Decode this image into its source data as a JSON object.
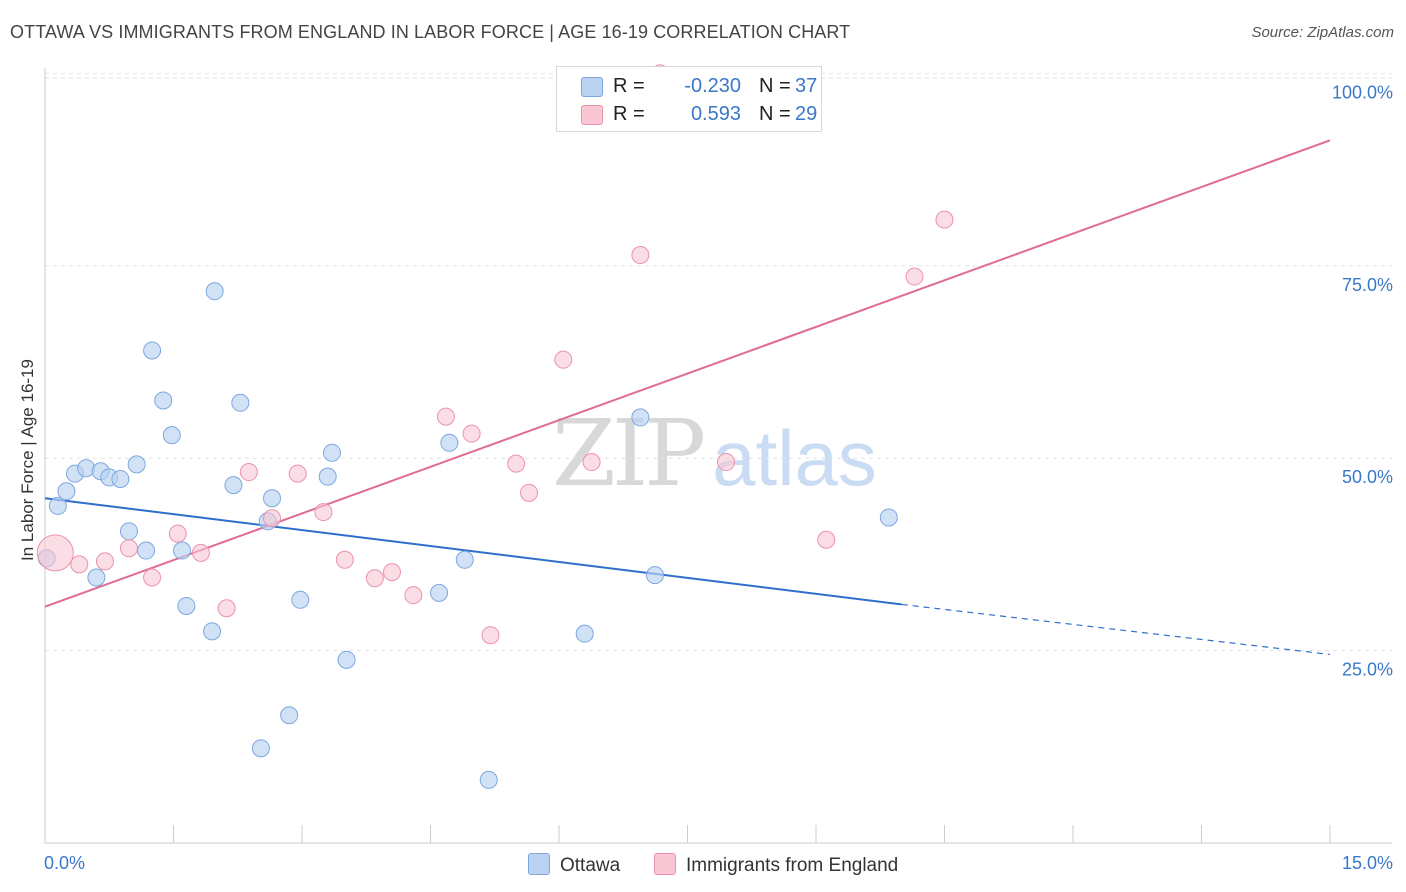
{
  "title": "OTTAWA VS IMMIGRANTS FROM ENGLAND IN LABOR FORCE | AGE 16-19 CORRELATION CHART",
  "source": "Source: ZipAtlas.com",
  "watermark": {
    "zip": "ZIP",
    "atlas": "atlas"
  },
  "legend_top": {
    "rows": [
      {
        "r_label": "R =",
        "r_value": "-0.230",
        "n_label": "N =",
        "n_value": "37"
      },
      {
        "r_label": "R =",
        "r_value": "0.593",
        "n_label": "N =",
        "n_value": "29"
      }
    ]
  },
  "legend_bottom": [
    {
      "label": "Ottawa"
    },
    {
      "label": "Immigrants from England"
    }
  ],
  "colors": {
    "ottawa_fill": "#b9d2f2",
    "ottawa_stroke": "#7ea7de",
    "ottawa_line": "#2e6fcc",
    "england_fill": "#f9c6d4",
    "england_stroke": "#eb92ad",
    "england_line": "#e06b95",
    "tick_label": "#3a78c9"
  },
  "chart_data": {
    "type": "scatter",
    "title": "OTTAWA VS IMMIGRANTS FROM ENGLAND IN LABOR FORCE | AGE 16-19 CORRELATION CHART",
    "xlabel": "",
    "ylabel": "In Labor Force | Age 16-19",
    "xlim": [
      0,
      15
    ],
    "ylim": [
      0,
      102
    ],
    "x_tick_labels": [
      "0.0%",
      "15.0%"
    ],
    "y_ticks": [
      25,
      50,
      75,
      100
    ],
    "y_tick_labels": [
      "25.0%",
      "50.0%",
      "75.0%",
      "100.0%"
    ],
    "grid": true,
    "legend_placement": "bottom",
    "series": [
      {
        "name": "Ottawa",
        "r": -0.23,
        "n": 37,
        "trend": {
          "x0": 0,
          "y0": 44.8,
          "x1": 10.0,
          "y1": 31.0,
          "dashed_to_x": 15.0,
          "dashed_to_y": 24.5
        },
        "points": [
          [
            0.02,
            37.0
          ],
          [
            0.15,
            43.8
          ],
          [
            0.25,
            45.7
          ],
          [
            0.35,
            48.0
          ],
          [
            0.48,
            48.7
          ],
          [
            0.65,
            48.3
          ],
          [
            0.75,
            47.5
          ],
          [
            0.88,
            47.3
          ],
          [
            1.07,
            49.2
          ],
          [
            0.6,
            34.5
          ],
          [
            0.98,
            40.5
          ],
          [
            1.18,
            38.0
          ],
          [
            1.25,
            64.0
          ],
          [
            1.38,
            57.5
          ],
          [
            1.48,
            53.0
          ],
          [
            1.6,
            38.0
          ],
          [
            1.65,
            30.8
          ],
          [
            1.98,
            71.7
          ],
          [
            1.95,
            27.5
          ],
          [
            2.2,
            46.5
          ],
          [
            2.28,
            57.2
          ],
          [
            2.6,
            41.8
          ],
          [
            2.65,
            44.8
          ],
          [
            2.98,
            31.6
          ],
          [
            2.85,
            16.6
          ],
          [
            2.52,
            12.3
          ],
          [
            3.3,
            47.6
          ],
          [
            3.35,
            50.7
          ],
          [
            3.52,
            23.8
          ],
          [
            4.72,
            52.0
          ],
          [
            4.6,
            32.5
          ],
          [
            4.9,
            36.8
          ],
          [
            5.18,
            8.2
          ],
          [
            6.3,
            27.2
          ],
          [
            6.95,
            55.3
          ],
          [
            7.12,
            34.8
          ],
          [
            9.85,
            42.3
          ]
        ]
      },
      {
        "name": "Immigrants from England",
        "r": 0.593,
        "n": 29,
        "trend": {
          "x0": 0,
          "y0": 30.7,
          "x1": 15.0,
          "y1": 91.3
        },
        "points": [
          [
            0.12,
            37.7
          ],
          [
            0.4,
            36.2
          ],
          [
            0.7,
            36.6
          ],
          [
            0.98,
            38.3
          ],
          [
            1.25,
            34.5
          ],
          [
            1.55,
            40.2
          ],
          [
            1.82,
            37.7
          ],
          [
            2.12,
            30.5
          ],
          [
            2.38,
            48.2
          ],
          [
            2.65,
            42.2
          ],
          [
            2.95,
            48.0
          ],
          [
            3.25,
            43.0
          ],
          [
            3.5,
            36.8
          ],
          [
            3.85,
            34.4
          ],
          [
            4.05,
            35.2
          ],
          [
            4.3,
            32.2
          ],
          [
            4.68,
            55.4
          ],
          [
            4.98,
            53.2
          ],
          [
            5.2,
            27.0
          ],
          [
            5.5,
            49.3
          ],
          [
            5.65,
            45.5
          ],
          [
            6.05,
            62.8
          ],
          [
            6.38,
            49.5
          ],
          [
            6.95,
            76.4
          ],
          [
            7.18,
            100.0
          ],
          [
            7.95,
            49.5
          ],
          [
            9.12,
            39.4
          ],
          [
            10.15,
            73.6
          ],
          [
            10.5,
            81.0
          ]
        ]
      }
    ]
  }
}
